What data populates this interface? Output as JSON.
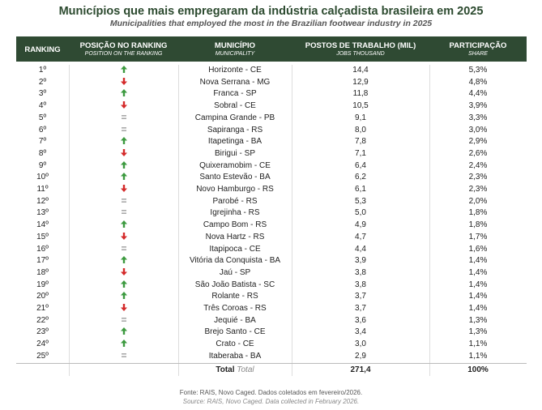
{
  "header": {
    "title": "Municípios que mais empregaram da indústria calçadista brasileira em 2025",
    "subtitle": "Municipalities that employed the most in the Brazilian footwear industry in 2025"
  },
  "table": {
    "columns": [
      {
        "label": "RANKING"
      },
      {
        "label": "POSIÇÃO NO RANKING",
        "sublabel": "POSITION ON THE RANKING"
      },
      {
        "label": "MUNICÍPIO",
        "sublabel": "MUNICIPALITY"
      },
      {
        "label": "POSTOS DE TRABALHO (MIL)",
        "sublabel": "JOBS THOUSAND"
      },
      {
        "label": "PARTICIPAÇÃO",
        "sublabel": "SHARE"
      }
    ],
    "rows": [
      {
        "rank": "1º",
        "trend": "up",
        "municipality": "Horizonte - CE",
        "jobs": "14,4",
        "share": "5,3%"
      },
      {
        "rank": "2º",
        "trend": "down",
        "municipality": "Nova Serrana - MG",
        "jobs": "12,9",
        "share": "4,8%"
      },
      {
        "rank": "3º",
        "trend": "up",
        "municipality": "Franca - SP",
        "jobs": "11,8",
        "share": "4,4%"
      },
      {
        "rank": "4º",
        "trend": "down",
        "municipality": "Sobral - CE",
        "jobs": "10,5",
        "share": "3,9%"
      },
      {
        "rank": "5º",
        "trend": "same",
        "municipality": "Campina Grande - PB",
        "jobs": "9,1",
        "share": "3,3%"
      },
      {
        "rank": "6º",
        "trend": "same",
        "municipality": "Sapiranga - RS",
        "jobs": "8,0",
        "share": "3,0%"
      },
      {
        "rank": "7º",
        "trend": "up",
        "municipality": "Itapetinga - BA",
        "jobs": "7,8",
        "share": "2,9%"
      },
      {
        "rank": "8º",
        "trend": "down",
        "municipality": "Birigui - SP",
        "jobs": "7,1",
        "share": "2,6%"
      },
      {
        "rank": "9º",
        "trend": "up",
        "municipality": "Quixeramobim - CE",
        "jobs": "6,4",
        "share": "2,4%"
      },
      {
        "rank": "10º",
        "trend": "up",
        "municipality": "Santo Estevão - BA",
        "jobs": "6,2",
        "share": "2,3%"
      },
      {
        "rank": "11º",
        "trend": "down",
        "municipality": "Novo Hamburgo - RS",
        "jobs": "6,1",
        "share": "2,3%"
      },
      {
        "rank": "12º",
        "trend": "same",
        "municipality": "Parobé - RS",
        "jobs": "5,3",
        "share": "2,0%"
      },
      {
        "rank": "13º",
        "trend": "same",
        "municipality": "Igrejinha - RS",
        "jobs": "5,0",
        "share": "1,8%"
      },
      {
        "rank": "14º",
        "trend": "up",
        "municipality": "Campo Bom - RS",
        "jobs": "4,9",
        "share": "1,8%"
      },
      {
        "rank": "15º",
        "trend": "down",
        "municipality": "Nova Hartz - RS",
        "jobs": "4,7",
        "share": "1,7%"
      },
      {
        "rank": "16º",
        "trend": "same",
        "municipality": "Itapipoca - CE",
        "jobs": "4,4",
        "share": "1,6%"
      },
      {
        "rank": "17º",
        "trend": "up",
        "municipality": "Vitória da Conquista - BA",
        "jobs": "3,9",
        "share": "1,4%"
      },
      {
        "rank": "18º",
        "trend": "down",
        "municipality": "Jaú - SP",
        "jobs": "3,8",
        "share": "1,4%"
      },
      {
        "rank": "19º",
        "trend": "up",
        "municipality": "São João Batista - SC",
        "jobs": "3,8",
        "share": "1,4%"
      },
      {
        "rank": "20º",
        "trend": "up",
        "municipality": "Rolante - RS",
        "jobs": "3,7",
        "share": "1,4%"
      },
      {
        "rank": "21º",
        "trend": "down",
        "municipality": "Três Coroas - RS",
        "jobs": "3,7",
        "share": "1,4%"
      },
      {
        "rank": "22º",
        "trend": "same",
        "municipality": "Jequié - BA",
        "jobs": "3,6",
        "share": "1,3%"
      },
      {
        "rank": "23º",
        "trend": "up",
        "municipality": "Brejo Santo - CE",
        "jobs": "3,4",
        "share": "1,3%"
      },
      {
        "rank": "24º",
        "trend": "up",
        "municipality": "Crato - CE",
        "jobs": "3,0",
        "share": "1,1%"
      },
      {
        "rank": "25º",
        "trend": "same",
        "municipality": "Itaberaba - BA",
        "jobs": "2,9",
        "share": "1,1%"
      }
    ],
    "total": {
      "label": "Total",
      "label_en": "Total",
      "jobs": "271,4",
      "share": "100%"
    }
  },
  "footer": {
    "source": "Fonte: RAIS, Novo Caged. Dados coletados em fevereiro/2026.",
    "source_en": "Source: RAIS, Novo Caged. Data collected in February 2026."
  }
}
